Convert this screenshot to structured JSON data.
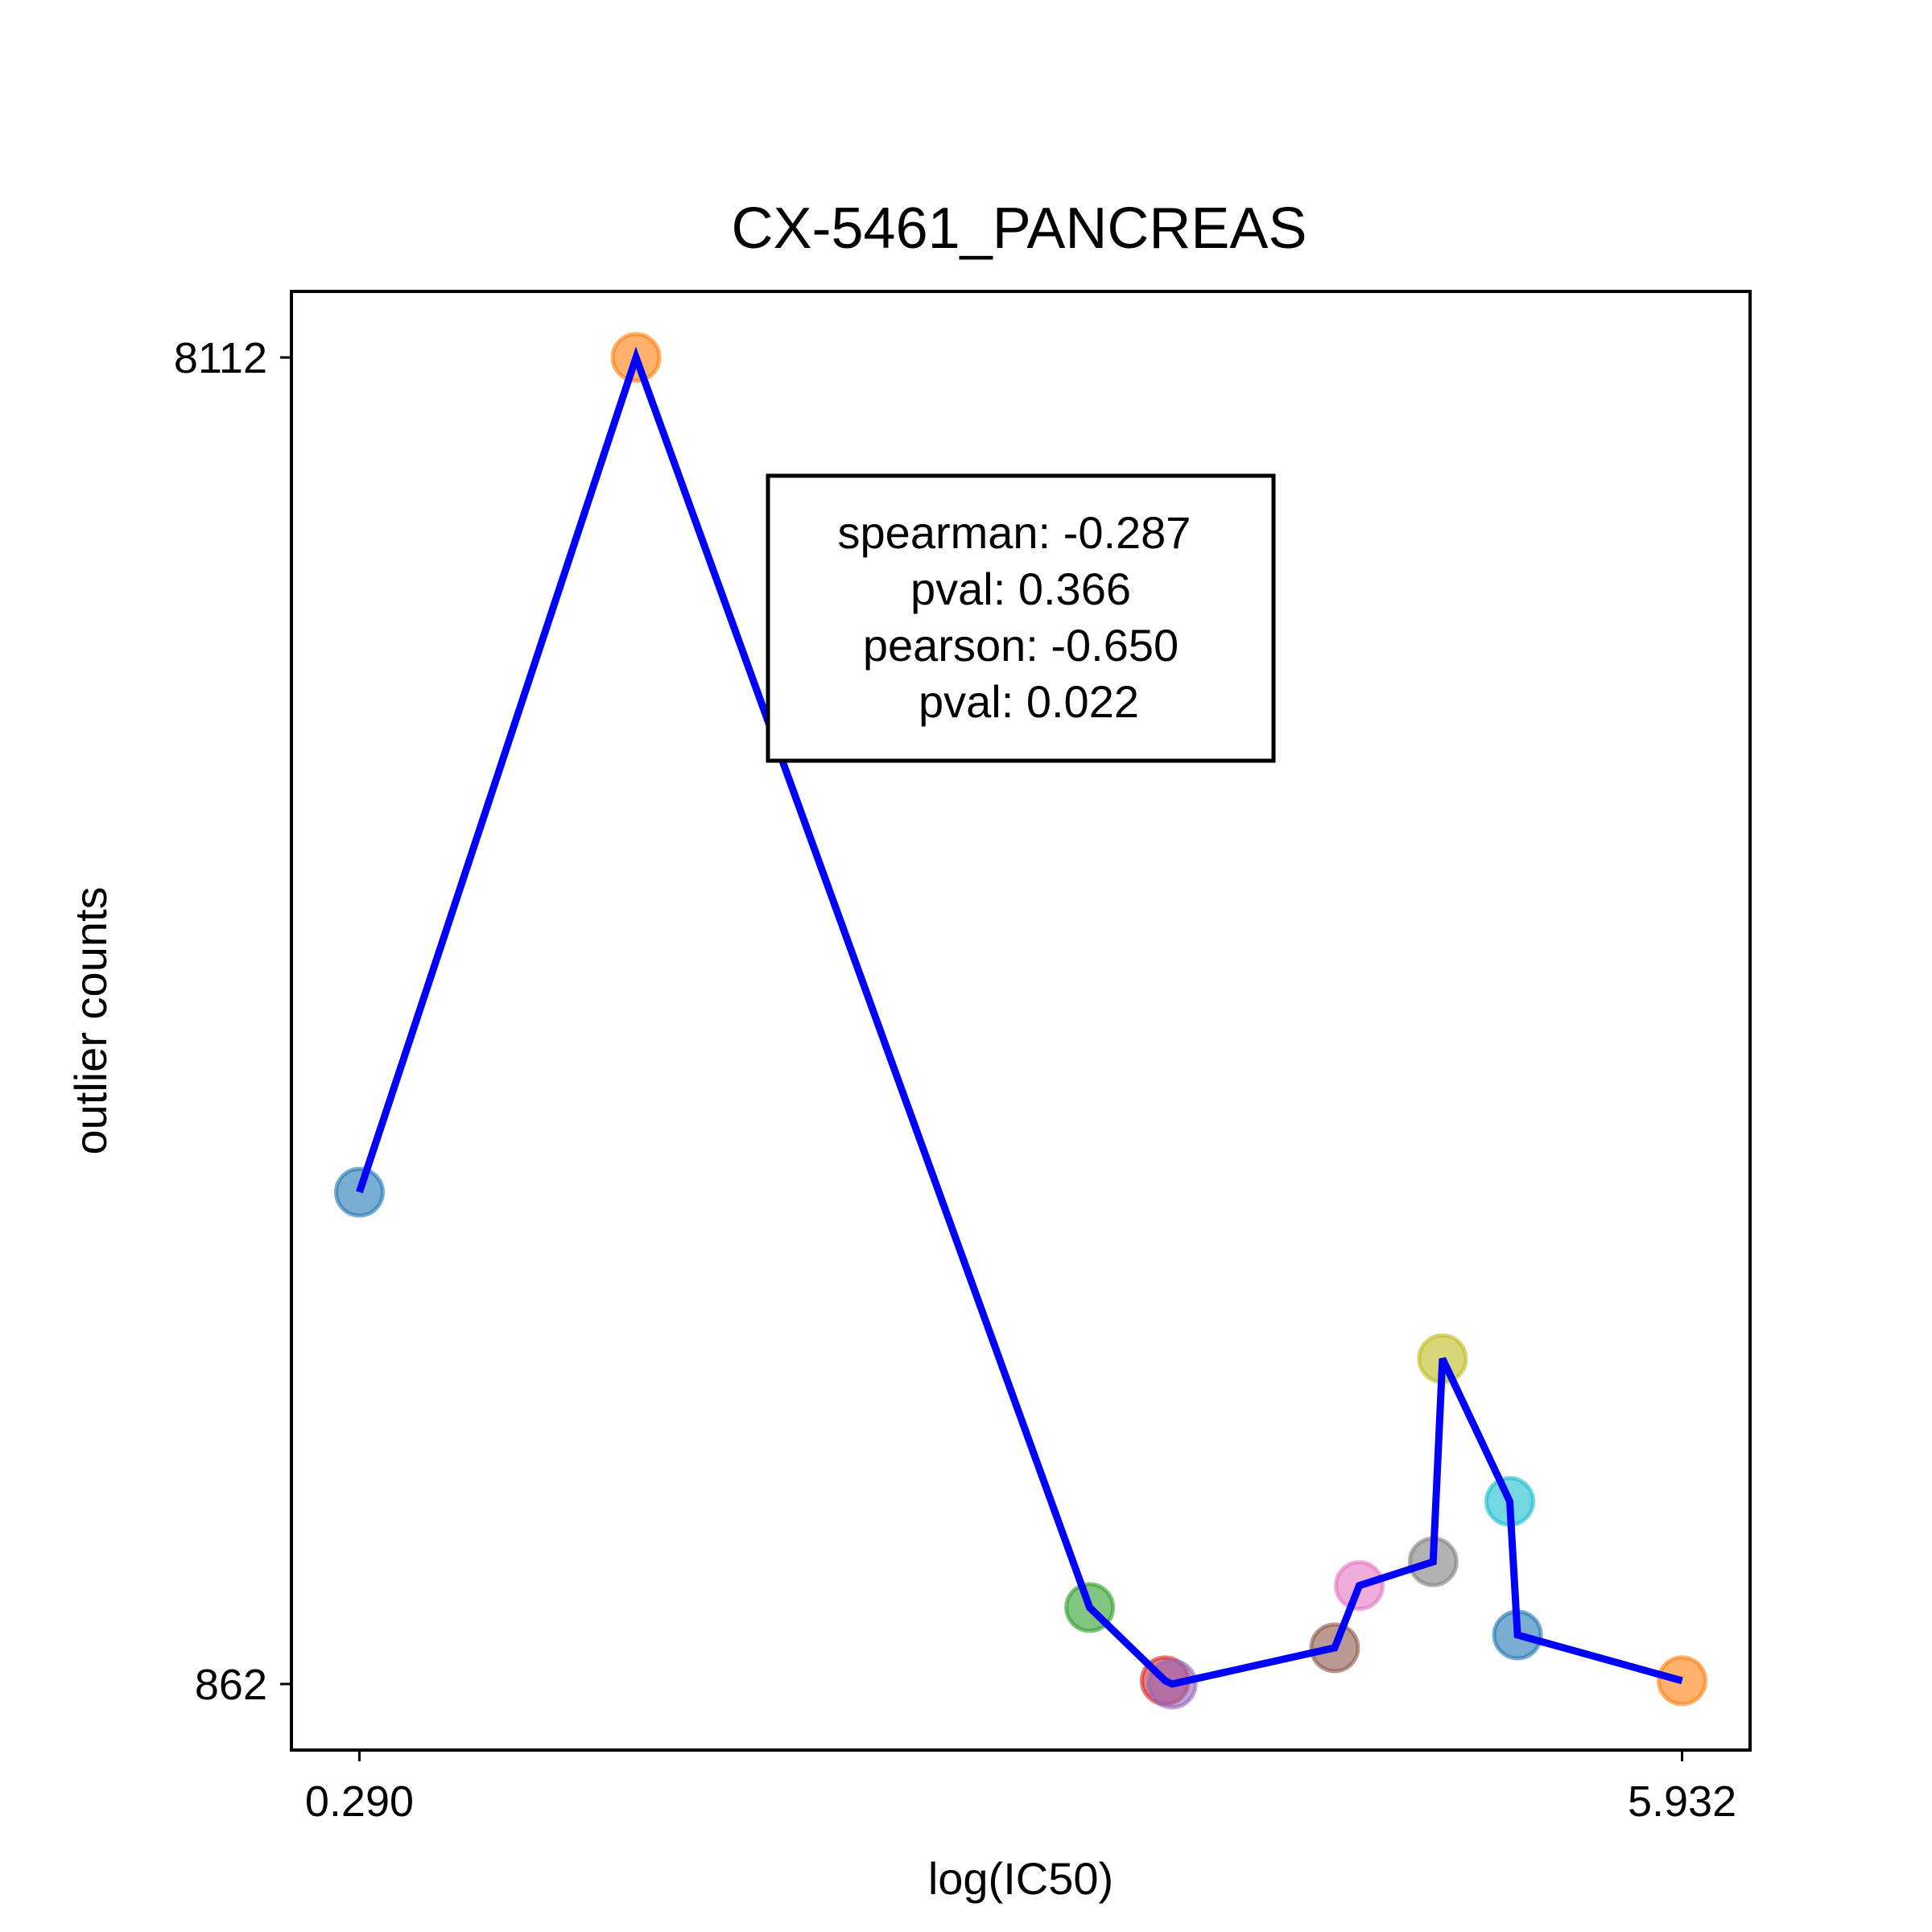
{
  "chart_data": {
    "type": "line",
    "title": "CX-5461_PANCREAS",
    "xlabel": "log(IC50)",
    "ylabel": "outlier counts",
    "xlim": [
      0.0,
      6.222
    ],
    "ylim": [
      501,
      8473
    ],
    "x_ticks": [
      {
        "value": 0.29,
        "label": "0.290"
      },
      {
        "value": 5.932,
        "label": "5.932"
      }
    ],
    "y_ticks": [
      {
        "value": 8112,
        "label": "8112"
      },
      {
        "value": 862,
        "label": "862"
      }
    ],
    "grid": false,
    "line_color": "#0000ff",
    "points": [
      {
        "x": 0.29,
        "y": 3550,
        "color": "#1f77b4"
      },
      {
        "x": 1.47,
        "y": 8112,
        "color": "#ff7f0e"
      },
      {
        "x": 3.405,
        "y": 1280,
        "color": "#2ca02c"
      },
      {
        "x": 3.727,
        "y": 880,
        "color": "#d62728"
      },
      {
        "x": 3.757,
        "y": 862,
        "color": "#9467bd"
      },
      {
        "x": 4.45,
        "y": 1060,
        "color": "#8c564b"
      },
      {
        "x": 4.555,
        "y": 1400,
        "color": "#e377c2"
      },
      {
        "x": 4.87,
        "y": 1530,
        "color": "#7f7f7f"
      },
      {
        "x": 4.91,
        "y": 2640,
        "color": "#bcbd22"
      },
      {
        "x": 5.197,
        "y": 1860,
        "color": "#17becf"
      },
      {
        "x": 5.23,
        "y": 1130,
        "color": "#1f77b4"
      },
      {
        "x": 5.932,
        "y": 880,
        "color": "#ff7f0e"
      }
    ],
    "annotation": {
      "lines": [
        "spearman: -0.287",
        "pval: 0.366",
        "pearson: -0.650",
        "pval: 0.022"
      ]
    }
  }
}
